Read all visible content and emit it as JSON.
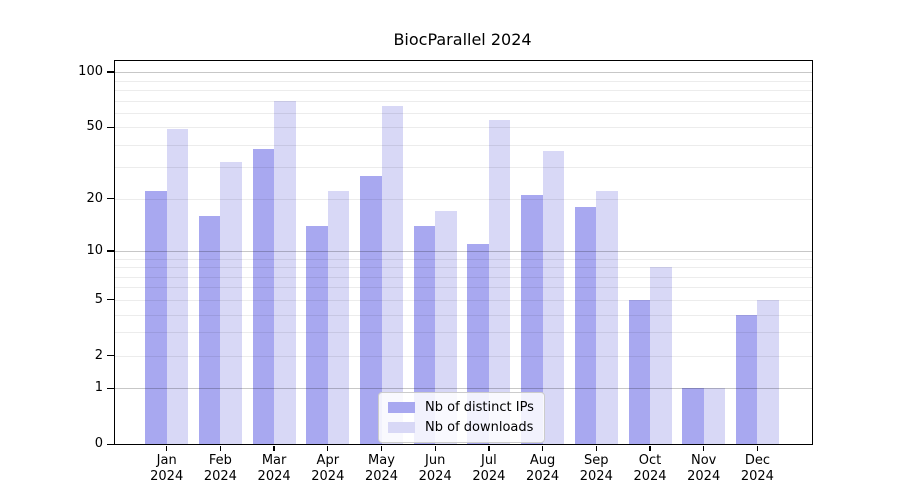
{
  "chart_data": {
    "type": "bar",
    "title": "BiocParallel 2024",
    "categories": [
      "Jan 2024",
      "Feb 2024",
      "Mar 2024",
      "Apr 2024",
      "May 2024",
      "Jun 2024",
      "Jul 2024",
      "Aug 2024",
      "Sep 2024",
      "Oct 2024",
      "Nov 2024",
      "Dec 2024"
    ],
    "series": [
      {
        "name": "Nb of distinct IPs",
        "color": "#a8a8f0",
        "values": [
          22,
          16,
          38,
          14,
          27,
          14,
          11,
          21,
          18,
          5,
          1,
          4
        ]
      },
      {
        "name": "Nb of downloads",
        "color": "#d8d8f6",
        "values": [
          49,
          32,
          70,
          22,
          65,
          17,
          55,
          37,
          22,
          8,
          1,
          5
        ]
      }
    ],
    "yscale": "log10(1+x)",
    "ylim": [
      0,
      100
    ],
    "y_ticks": [
      0,
      1,
      2,
      5,
      10,
      20,
      50,
      100
    ],
    "y_minor_gridlines": [
      2,
      3,
      4,
      5,
      6,
      7,
      8,
      9,
      20,
      30,
      40,
      50,
      60,
      70,
      80,
      90
    ],
    "y_major_gridlines": [
      1,
      10,
      100
    ],
    "grid": true,
    "legend_position": "lower center",
    "colors": {
      "spine": "#000000",
      "minor_grid": "#ececec",
      "major_grid": "#c9c9c9",
      "legend_border": "#cccccc",
      "legend_background": "rgba(255,255,255,0.85)",
      "text": "#000000",
      "background": "#ffffff"
    }
  }
}
